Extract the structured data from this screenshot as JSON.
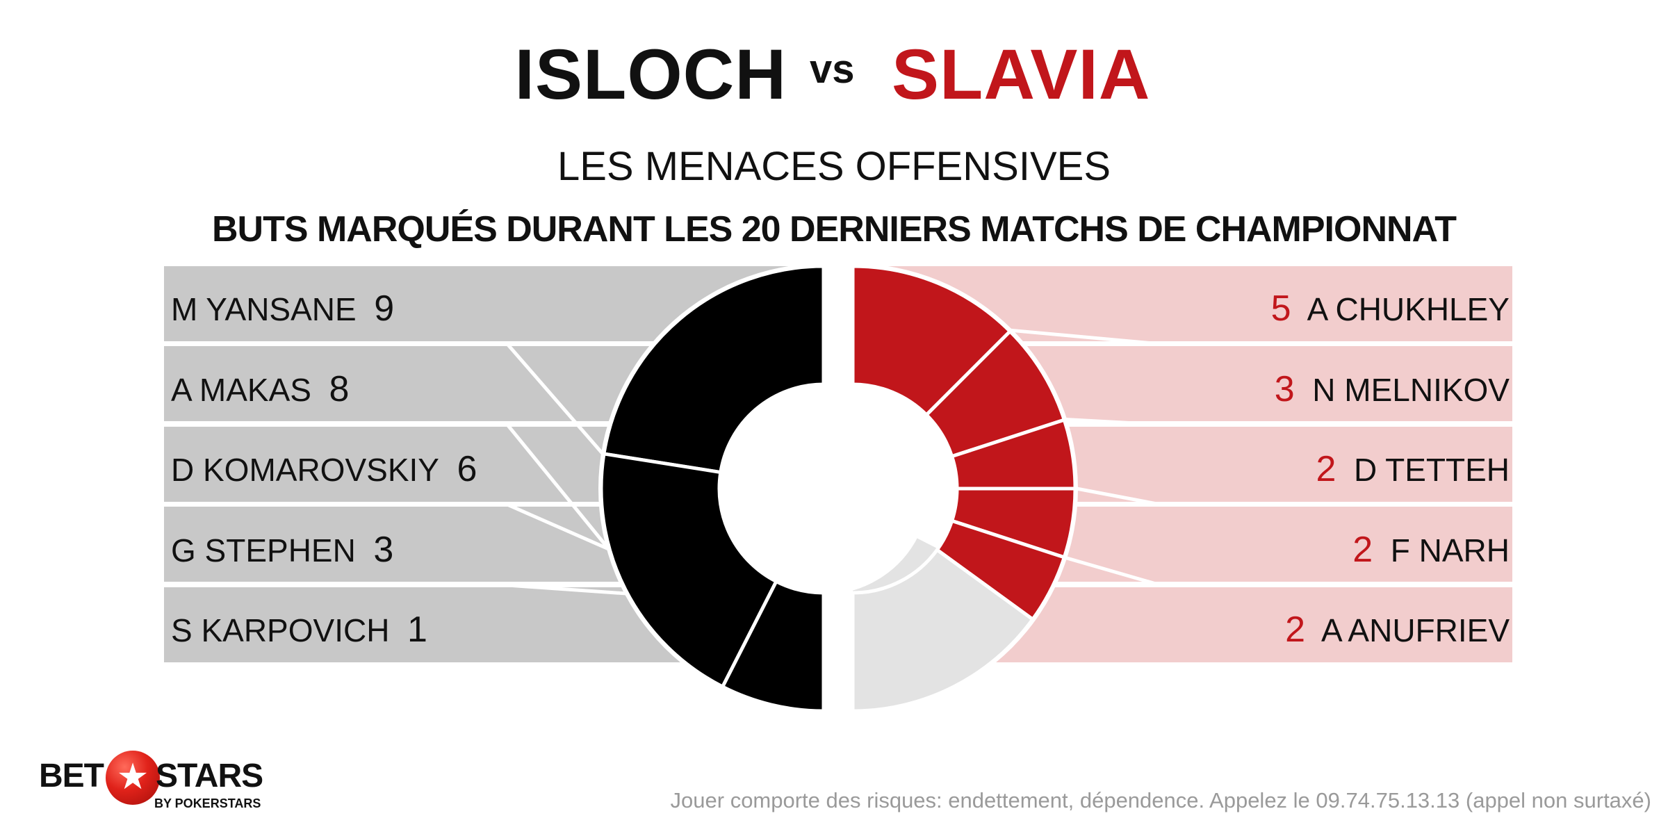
{
  "header": {
    "team_home": "ISLOCH",
    "vs": "vs",
    "team_away": "SLAVIA",
    "subtitle": "LES MENACES OFFENSIVES",
    "subtitle2": "BUTS MARQUÉS DURANT LES 20 DERNIERS MATCHS DE CHAMPIONNAT"
  },
  "chart_data": {
    "type": "pie",
    "variant": "split-donut",
    "title": "LES MENACES OFFENSIVES",
    "subtitle": "BUTS MARQUÉS DURANT LES 20 DERNIERS MATCHS DE CHAMPIONNAT",
    "series": [
      {
        "name": "ISLOCH",
        "color": "#000000",
        "remainder_color": "#e3e3e3",
        "label_bg": "#c8c8c8",
        "side": "left",
        "categories": [
          "M YANSANE",
          "A MAKAS",
          "D KOMAROVSKIY",
          "G STEPHEN",
          "S KARPOVICH"
        ],
        "values": [
          9,
          8,
          6,
          3,
          1
        ]
      },
      {
        "name": "SLAVIA",
        "color": "#c1161b",
        "remainder_color": "#e3e3e3",
        "label_bg": "#f2cdcd",
        "side": "right",
        "categories": [
          "A CHUKHLEY",
          "N MELNIKOV",
          "D TETTEH",
          "F NARH",
          "A ANUFRIEV"
        ],
        "values": [
          5,
          3,
          2,
          2,
          2
        ]
      }
    ]
  },
  "logo": {
    "bet": "BET",
    "stars": "STARS",
    "by": "BY POKERSTARS",
    "star_glyph": "★"
  },
  "footer": {
    "disclaimer": "Jouer comporte des risques: endettement, dépendence. Appelez le 09.74.75.13.13 (appel non surtaxé)"
  }
}
